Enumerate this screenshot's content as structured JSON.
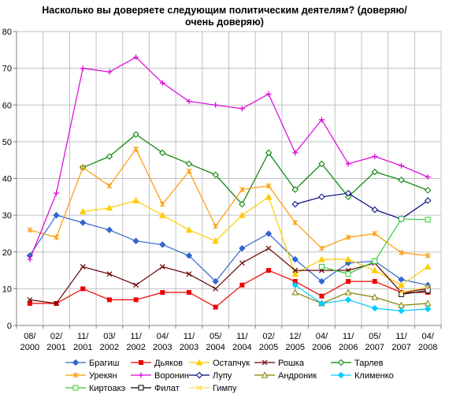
{
  "chart_data": {
    "type": "line",
    "title_lines": [
      "Насколько вы доверяете следующим политическим деятелям? (доверяю/",
      "очень доверяю)"
    ],
    "categories": [
      [
        "08/",
        "2000"
      ],
      [
        "02/",
        "2001"
      ],
      [
        "11/",
        "2001"
      ],
      [
        "03/",
        "2002"
      ],
      [
        "11/",
        "2002"
      ],
      [
        "04/",
        "2003"
      ],
      [
        "11/",
        "2003"
      ],
      [
        "05/",
        "2004"
      ],
      [
        "11/",
        "2004"
      ],
      [
        "02/",
        "2005"
      ],
      [
        "12/",
        "2005"
      ],
      [
        "04/",
        "2006"
      ],
      [
        "11/",
        "2006"
      ],
      [
        "05/",
        "2007"
      ],
      [
        "11/",
        "2007"
      ],
      [
        "04/",
        "2008"
      ]
    ],
    "ylim": [
      0,
      80
    ],
    "yticks": [
      0,
      10,
      20,
      30,
      40,
      50,
      60,
      70,
      80
    ],
    "grid": true,
    "legend_position": "bottom",
    "series": [
      {
        "name": "Брагиш",
        "color": "#3366cc",
        "marker": "diamond",
        "values": [
          19,
          30,
          28,
          26,
          23,
          22,
          19,
          12,
          21,
          25,
          18,
          12,
          17,
          17.5,
          12.5,
          11
        ]
      },
      {
        "name": "Дьяков",
        "color": "#ee0000",
        "marker": "square",
        "values": [
          6,
          6,
          10,
          7,
          7,
          9,
          9,
          5,
          11,
          15,
          12,
          8,
          12,
          12,
          9,
          9
        ]
      },
      {
        "name": "Остапчук",
        "color": "#ffcc00",
        "marker": "triangle",
        "values": [
          null,
          null,
          31,
          32,
          34,
          30,
          26,
          23,
          30,
          35,
          14,
          18,
          18,
          15,
          11,
          16
        ]
      },
      {
        "name": "Рошка",
        "color": "#660000",
        "marker": "x",
        "values": [
          7,
          6,
          16,
          14,
          11,
          16,
          14,
          10,
          17,
          21,
          15,
          15,
          15,
          17,
          9,
          10
        ]
      },
      {
        "name": "Тарлев",
        "color": "#008000",
        "marker": "diamond-open",
        "values": [
          null,
          null,
          43,
          46,
          52,
          47,
          44,
          41,
          33,
          47,
          37,
          44,
          35,
          41.8,
          39.6,
          36.8
        ]
      },
      {
        "name": "Урекян",
        "color": "#ff9900",
        "marker": "star",
        "values": [
          26,
          24,
          43,
          38,
          48,
          33,
          42,
          27,
          37,
          38,
          28,
          21,
          24,
          25,
          19.8,
          19
        ]
      },
      {
        "name": "Воронин",
        "color": "#dd00dd",
        "marker": "plus",
        "values": [
          18,
          36,
          70,
          69,
          73,
          66,
          61,
          60,
          59,
          63,
          47,
          56,
          44,
          46,
          43.5,
          40.4
        ]
      },
      {
        "name": "Лупу",
        "color": "#000080",
        "marker": "diamond-open",
        "values": [
          null,
          null,
          null,
          null,
          null,
          null,
          null,
          null,
          null,
          null,
          33,
          35,
          36,
          31.5,
          29,
          34
        ]
      },
      {
        "name": "Андроник",
        "color": "#808000",
        "marker": "triangle-open",
        "values": [
          null,
          null,
          null,
          null,
          null,
          null,
          null,
          null,
          null,
          null,
          9,
          6,
          9,
          7.7,
          5.5,
          6
        ]
      },
      {
        "name": "Клименко",
        "color": "#00ccff",
        "marker": "diamond",
        "values": [
          null,
          null,
          null,
          null,
          null,
          null,
          null,
          null,
          null,
          null,
          11,
          6,
          7,
          4.7,
          4,
          4.5
        ]
      },
      {
        "name": "Киртоакэ",
        "color": "#33cc33",
        "marker": "square-open",
        "values": [
          null,
          null,
          null,
          null,
          null,
          null,
          null,
          null,
          null,
          null,
          null,
          16,
          14,
          17.5,
          29,
          28.8
        ]
      },
      {
        "name": "Филат",
        "color": "#000000",
        "marker": "square-open",
        "values": [
          null,
          null,
          null,
          null,
          null,
          null,
          null,
          null,
          null,
          null,
          null,
          null,
          null,
          null,
          8.5,
          9.5
        ]
      },
      {
        "name": "Гимпу",
        "color": "#ffdd55",
        "marker": "x",
        "values": [
          null,
          null,
          null,
          null,
          null,
          null,
          null,
          null,
          null,
          null,
          null,
          null,
          null,
          null,
          9,
          10.5
        ]
      }
    ]
  }
}
